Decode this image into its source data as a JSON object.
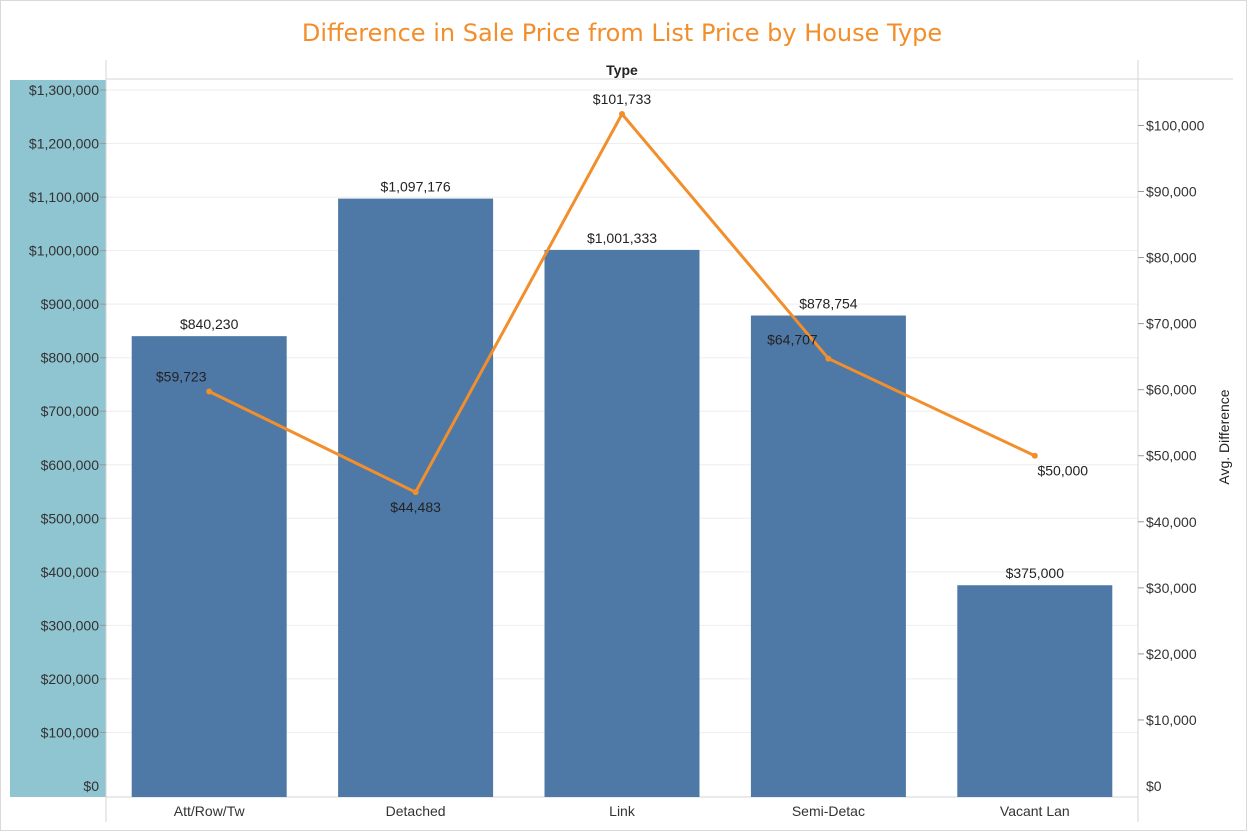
{
  "chart_data": {
    "type": "bar",
    "title": "Difference in Sale Price from List Price by House Type",
    "xlabel": "Type",
    "ylabel": "",
    "y2label": "Avg. Difference",
    "categories": [
      "Att/Row/Tw",
      "Detached",
      "Link",
      "Semi-Detac",
      "Vacant Lan"
    ],
    "ylim": [
      0,
      1300000
    ],
    "y2lim": [
      0,
      105000
    ],
    "yticks": [
      0,
      100000,
      200000,
      300000,
      400000,
      500000,
      600000,
      700000,
      800000,
      900000,
      1000000,
      1100000,
      1200000,
      1300000
    ],
    "ytick_labels": [
      "$0",
      "$100,000",
      "$200,000",
      "$300,000",
      "$400,000",
      "$500,000",
      "$600,000",
      "$700,000",
      "$800,000",
      "$900,000",
      "$1,000,000",
      "$1,100,000",
      "$1,200,000",
      "$1,300,000"
    ],
    "y2ticks": [
      0,
      10000,
      20000,
      30000,
      40000,
      50000,
      60000,
      70000,
      80000,
      90000,
      100000
    ],
    "y2tick_labels": [
      "$0",
      "$10,000",
      "$20,000",
      "$30,000",
      "$40,000",
      "$50,000",
      "$60,000",
      "$70,000",
      "$80,000",
      "$90,000",
      "$100,000"
    ],
    "series": [
      {
        "type": "bar",
        "axis": "left",
        "values": [
          840230,
          1097176,
          1001333,
          878754,
          375000
        ],
        "labels": [
          "$840,230",
          "$1,097,176",
          "$1,001,333",
          "$878,754",
          "$375,000"
        ],
        "color": "#4e79a7"
      },
      {
        "name": "Avg. Difference",
        "type": "line",
        "axis": "right",
        "values": [
          59723,
          44483,
          101733,
          64707,
          50000
        ],
        "labels": [
          "$59,723",
          "$44,483",
          "$101,733",
          "$64,707",
          "$50,000"
        ],
        "color": "#f28e2b"
      }
    ],
    "grid": true,
    "left_axis_highlight_color": "#8fc4d1"
  }
}
